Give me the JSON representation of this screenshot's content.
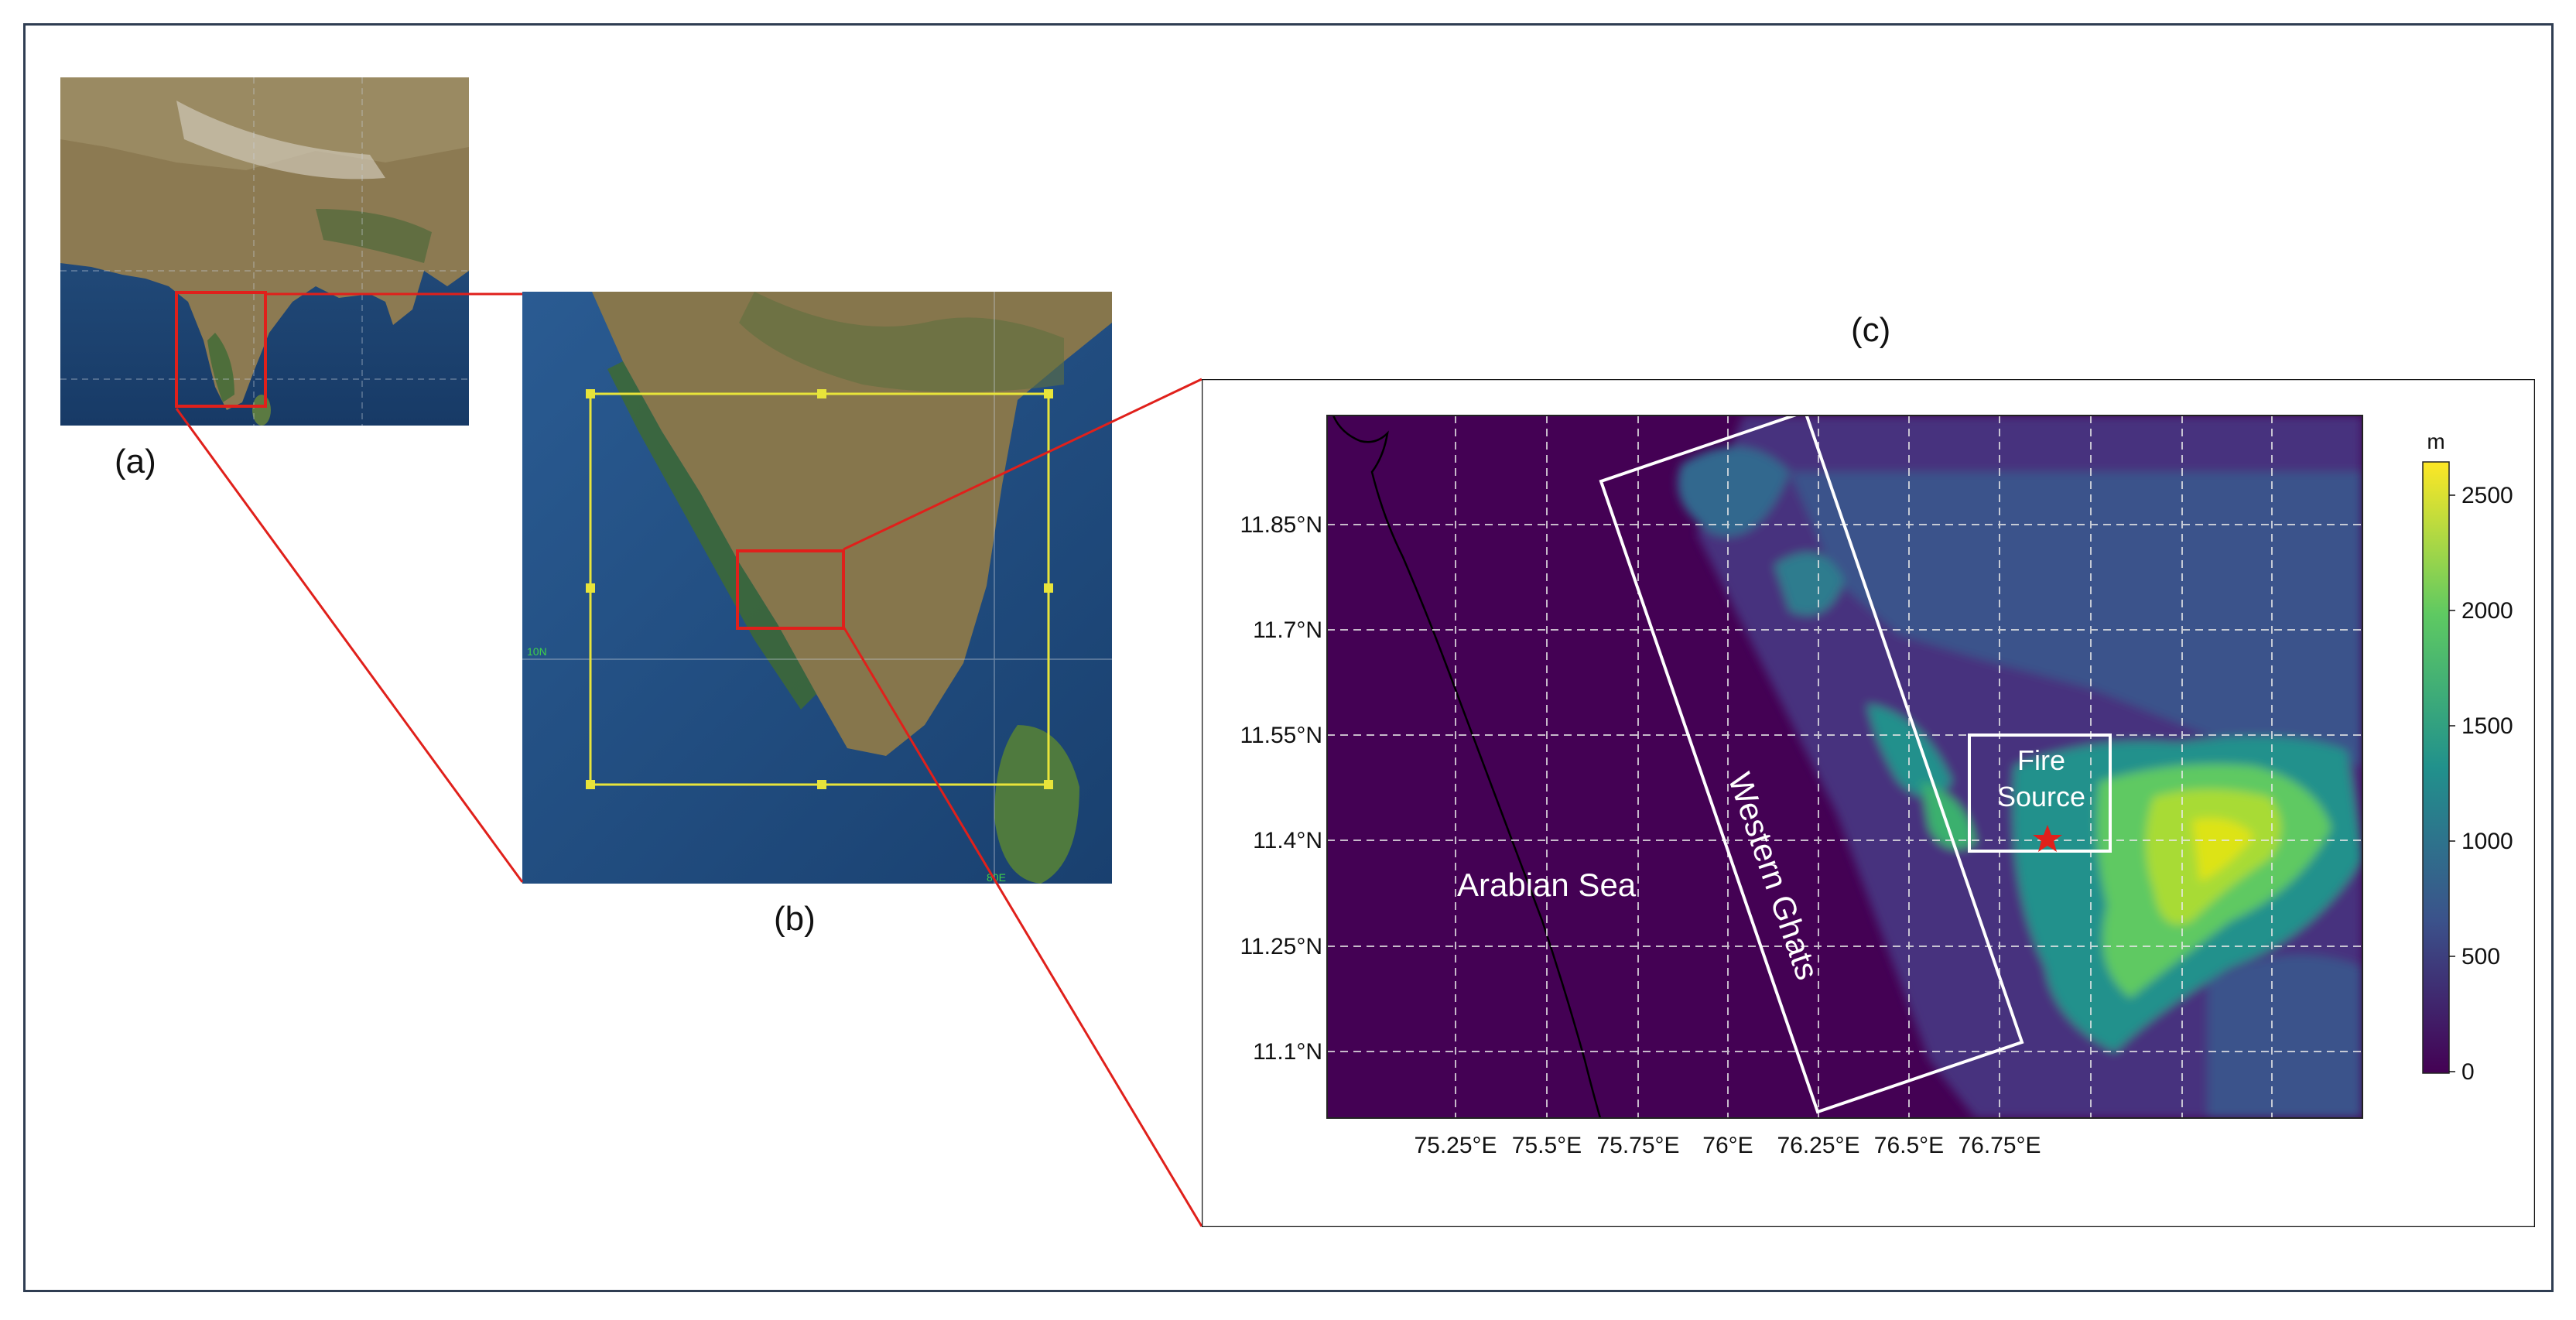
{
  "panels": {
    "a": {
      "label": "(a)"
    },
    "b": {
      "label": "(b)",
      "grid_label_lat": "10N",
      "grid_label_lon": "80E"
    },
    "c": {
      "label": "(c)"
    }
  },
  "map_c": {
    "lat_ticks": [
      "11.85°N",
      "11.7°N",
      "11.55°N",
      "11.4°N",
      "11.25°N",
      "11.1°N"
    ],
    "lon_ticks": [
      "75.25°E",
      "75.5°E",
      "75.75°E",
      "76°E",
      "76.25°E",
      "76.5°E",
      "76.75°E"
    ],
    "annotations": {
      "sea": "Arabian Sea",
      "range": "Western Ghats",
      "fire_line1": "Fire",
      "fire_line2": "Source"
    },
    "colorbar": {
      "unit": "m",
      "ticks": [
        "2500",
        "2000",
        "1500",
        "1000",
        "500",
        "0"
      ],
      "range": [
        0,
        2650
      ]
    }
  },
  "colors": {
    "zoom_box": "#e0201b",
    "domain_box": "#e8e43a",
    "marker": "#e0201b",
    "frame": "#2f3d52"
  }
}
